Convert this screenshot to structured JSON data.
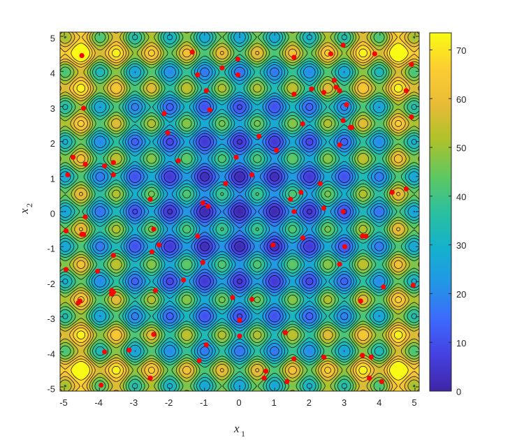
{
  "chart_data": {
    "type": "contour",
    "function": "rastrigin",
    "xlabel": "x",
    "xlabel_sub": "1",
    "ylabel": "x",
    "ylabel_sub": "2",
    "xlim": [
      -5.12,
      5.12
    ],
    "ylim": [
      -5.12,
      5.12
    ],
    "x_ticks": [
      "-5",
      "-4",
      "-3",
      "-2",
      "-1",
      "0",
      "1",
      "2",
      "3",
      "4",
      "5"
    ],
    "y_ticks": [
      "5",
      "4",
      "3",
      "2",
      "1",
      "0",
      "-1",
      "-2",
      "-3",
      "-4",
      "-5"
    ],
    "colorbar": {
      "range": [
        0,
        73.5
      ],
      "ticks": [
        "70",
        "60",
        "50",
        "40",
        "30",
        "20",
        "10",
        "0"
      ],
      "colormap": "parula"
    },
    "contour_levels": [
      5,
      10,
      15,
      20,
      25,
      30,
      35,
      40,
      45,
      50,
      55,
      60,
      65,
      70
    ],
    "samples": {
      "color": "#ff0000",
      "points": [
        [
          -4.5,
          4.45
        ],
        [
          -4.45,
          2.95
        ],
        [
          -4.75,
          1.55
        ],
        [
          -4.9,
          1.05
        ],
        [
          -4.4,
          1.35
        ],
        [
          -3.85,
          1.3
        ],
        [
          -3.6,
          1.4
        ],
        [
          -3.6,
          1.05
        ],
        [
          -4.4,
          -0.15
        ],
        [
          -4.45,
          -0.65
        ],
        [
          -4.5,
          -0.65
        ],
        [
          -4.95,
          -0.55
        ],
        [
          -4.95,
          -1.65
        ],
        [
          -3.6,
          -1.25
        ],
        [
          -4.05,
          -1.7
        ],
        [
          -4.6,
          -2.6
        ],
        [
          -4.55,
          -2.55
        ],
        [
          -3.65,
          -2.25
        ],
        [
          -3.6,
          -2.3
        ],
        [
          -3.65,
          -2.35
        ],
        [
          -3.85,
          -4.0
        ],
        [
          -3.15,
          -3.95
        ],
        [
          -3.95,
          -4.95
        ],
        [
          -1.35,
          4.55
        ],
        [
          -1.2,
          3.9
        ],
        [
          -0.5,
          4.1
        ],
        [
          -0.05,
          4.35
        ],
        [
          -0.05,
          3.9
        ],
        [
          -0.95,
          3.45
        ],
        [
          -0.85,
          2.9
        ],
        [
          -2.15,
          2.8
        ],
        [
          -2.05,
          2.25
        ],
        [
          -1.75,
          1.45
        ],
        [
          -2.55,
          0.35
        ],
        [
          -1.05,
          0.25
        ],
        [
          -0.9,
          0.15
        ],
        [
          -0.4,
          0.8
        ],
        [
          -0.1,
          1.55
        ],
        [
          0.35,
          1.05
        ],
        [
          0.55,
          2.15
        ],
        [
          1.05,
          1.75
        ],
        [
          -2.45,
          -0.5
        ],
        [
          -2.3,
          -0.95
        ],
        [
          -2.5,
          -1.15
        ],
        [
          -1.2,
          -0.7
        ],
        [
          -1.05,
          -1.45
        ],
        [
          -1.6,
          -1.95
        ],
        [
          -2.4,
          -2.25
        ],
        [
          -0.2,
          -2.45
        ],
        [
          0.35,
          -2.5
        ],
        [
          0.0,
          -3.1
        ],
        [
          0.0,
          -3.55
        ],
        [
          -0.95,
          -3.8
        ],
        [
          -1.15,
          -4.25
        ],
        [
          -2.45,
          -3.5
        ],
        [
          -2.55,
          -4.75
        ],
        [
          0.75,
          -4.55
        ],
        [
          0.7,
          -4.75
        ],
        [
          1.3,
          -3.45
        ],
        [
          1.55,
          -4.2
        ],
        [
          1.35,
          -4.85
        ],
        [
          0.95,
          -0.95
        ],
        [
          1.8,
          -0.75
        ],
        [
          2.4,
          -4.15
        ],
        [
          1.55,
          4.4
        ],
        [
          2.6,
          4.5
        ],
        [
          2.95,
          4.75
        ],
        [
          3.85,
          4.5
        ],
        [
          2.05,
          3.5
        ],
        [
          2.4,
          3.4
        ],
        [
          2.7,
          3.75
        ],
        [
          2.75,
          3.55
        ],
        [
          2.85,
          3.45
        ],
        [
          3.05,
          3.05
        ],
        [
          1.55,
          3.35
        ],
        [
          1.8,
          2.5
        ],
        [
          2.95,
          2.6
        ],
        [
          3.15,
          2.4
        ],
        [
          3.2,
          2.4
        ],
        [
          2.85,
          1.9
        ],
        [
          2.3,
          0.8
        ],
        [
          2.4,
          0.1
        ],
        [
          1.45,
          0.35
        ],
        [
          1.55,
          0.0
        ],
        [
          1.75,
          0.55
        ],
        [
          2.95,
          0.0
        ],
        [
          3.5,
          -0.7
        ],
        [
          3.6,
          -0.7
        ],
        [
          3.0,
          -1.0
        ],
        [
          2.85,
          -1.5
        ],
        [
          3.45,
          -2.55
        ],
        [
          4.1,
          -2.15
        ],
        [
          4.95,
          -2.1
        ],
        [
          3.5,
          -4.1
        ],
        [
          3.75,
          -4.15
        ],
        [
          3.7,
          -4.75
        ],
        [
          4.05,
          -4.85
        ],
        [
          4.35,
          0.55
        ],
        [
          4.75,
          0.65
        ],
        [
          4.75,
          3.45
        ],
        [
          4.9,
          4.2
        ],
        [
          4.9,
          2.7
        ]
      ]
    }
  }
}
